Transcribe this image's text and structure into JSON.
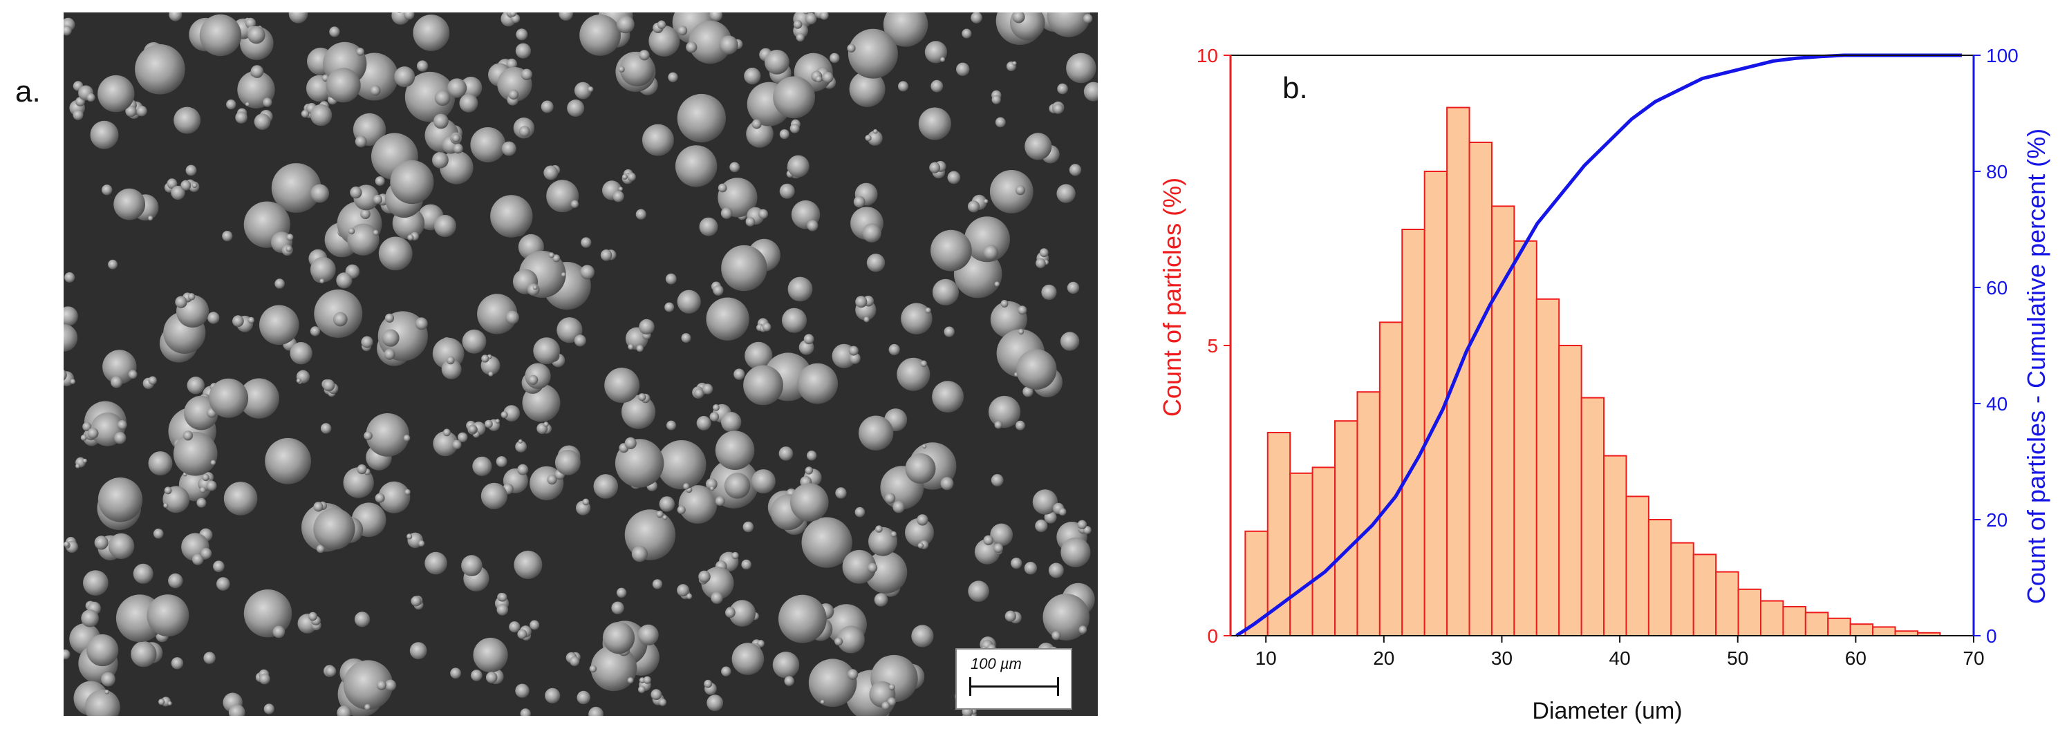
{
  "panels": {
    "a_label": "a.",
    "b_label": "b."
  },
  "sem_image": {
    "scale_bar_label": "100 µm"
  },
  "colors": {
    "bar_fill": "#fcc79b",
    "bar_edge": "#ee1c1c",
    "left_axis": "#ee1c1c",
    "right_axis": "#1515e8",
    "cumulative_line": "#1515e8",
    "sem_background": "#2b2b2b"
  },
  "chart_data": {
    "type": "bar",
    "title": "",
    "xlabel": "Diameter (um)",
    "ylabel": "Count of particles (%)",
    "y2label": "Count of particles - Cumulative percent (%)",
    "xlim": [
      7,
      70
    ],
    "ylim": [
      0,
      10
    ],
    "y2lim": [
      0,
      100
    ],
    "x_ticks": [
      "10",
      "20",
      "30",
      "40",
      "50",
      "60",
      "70"
    ],
    "y_ticks": [
      "0",
      "5",
      "10"
    ],
    "y2_ticks": [
      "0",
      "20",
      "40",
      "60",
      "80",
      "100"
    ],
    "grid": false,
    "series": [
      {
        "kind": "bar",
        "axis": "left",
        "bin_width": 1.9,
        "x": [
          9.2,
          11.1,
          13.0,
          14.9,
          16.8,
          18.7,
          20.6,
          22.5,
          24.4,
          26.3,
          28.2,
          30.1,
          32.0,
          33.9,
          35.8,
          37.7,
          39.6,
          41.5,
          43.4,
          45.3,
          47.2,
          49.1,
          51.0,
          52.9,
          54.8,
          56.7,
          58.6,
          60.5,
          62.4,
          64.3,
          66.2
        ],
        "values": [
          1.8,
          3.5,
          2.8,
          2.9,
          3.7,
          4.2,
          5.4,
          7.0,
          8.0,
          9.1,
          8.5,
          7.4,
          6.8,
          5.8,
          5.0,
          4.1,
          3.1,
          2.4,
          2.0,
          1.6,
          1.4,
          1.1,
          0.8,
          0.6,
          0.5,
          0.4,
          0.3,
          0.2,
          0.15,
          0.08,
          0.05
        ]
      },
      {
        "kind": "line",
        "axis": "right",
        "x": [
          7.5,
          9,
          11,
          13,
          15,
          17,
          19,
          21,
          23,
          25,
          27,
          29,
          31,
          33,
          35,
          37,
          39,
          41,
          43,
          45,
          47,
          49,
          51,
          53,
          55,
          57,
          59,
          61,
          63,
          65,
          67,
          69
        ],
        "values": [
          0,
          2,
          5,
          8,
          11,
          15,
          19,
          24,
          31,
          39,
          49,
          57,
          64,
          71,
          76,
          81,
          85,
          89,
          92,
          94,
          96,
          97,
          98,
          99,
          99.5,
          99.8,
          100,
          100,
          100,
          100,
          100,
          100
        ]
      }
    ]
  }
}
